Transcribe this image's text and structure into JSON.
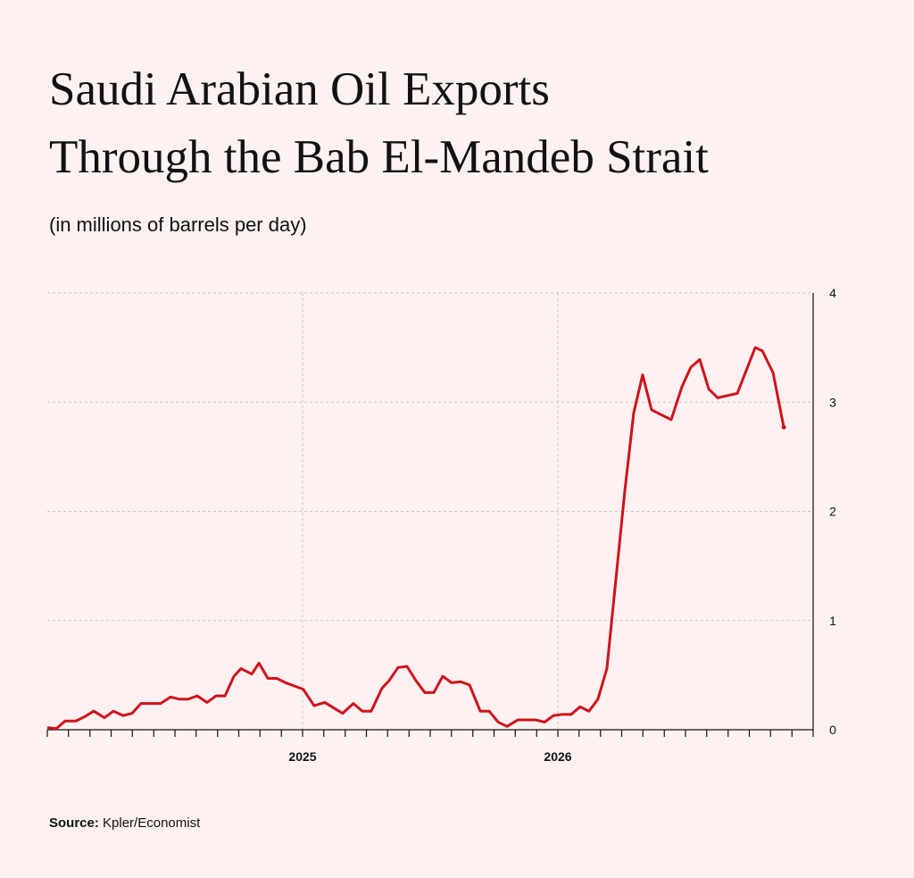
{
  "chart_data": {
    "type": "line",
    "title_lines": [
      "Saudi Arabian Oil Exports",
      "Through the Bab El-Mandeb Strait"
    ],
    "subtitle": "(in millions of barrels per day)",
    "source_label": "Source:",
    "source": "Kpler/Economist",
    "x": [
      2024.0,
      2024.035,
      2024.07,
      2024.112,
      2024.147,
      2024.182,
      2024.224,
      2024.259,
      2024.297,
      2024.332,
      2024.367,
      2024.409,
      2024.444,
      2024.483,
      2024.517,
      2024.552,
      2024.587,
      2024.626,
      2024.661,
      2024.696,
      2024.731,
      2024.759,
      2024.801,
      2024.829,
      2024.864,
      2024.899,
      2024.934,
      2024.969,
      2025.003,
      2025.045,
      2025.087,
      2025.122,
      2025.157,
      2025.199,
      2025.234,
      2025.269,
      2025.311,
      2025.339,
      2025.374,
      2025.409,
      2025.444,
      2025.479,
      2025.514,
      2025.549,
      2025.584,
      2025.619,
      2025.654,
      2025.696,
      2025.731,
      2025.766,
      2025.801,
      2025.843,
      2025.878,
      2025.913,
      2025.948,
      2025.983,
      2026.017,
      2026.052,
      2026.087,
      2026.122,
      2026.157,
      2026.192,
      2026.227,
      2026.262,
      2026.297,
      2026.332,
      2026.367,
      2026.409,
      2026.444,
      2026.486,
      2026.521,
      2026.556,
      2026.591,
      2026.626,
      2026.703,
      2026.773,
      2026.801,
      2026.843,
      2026.885
    ],
    "series": [
      {
        "name": "Exports",
        "color": "#d0121b",
        "values": [
          0.02,
          0.01,
          0.08,
          0.08,
          0.12,
          0.17,
          0.11,
          0.17,
          0.13,
          0.15,
          0.24,
          0.24,
          0.24,
          0.3,
          0.28,
          0.28,
          0.31,
          0.25,
          0.31,
          0.31,
          0.49,
          0.56,
          0.51,
          0.61,
          0.47,
          0.47,
          0.43,
          0.4,
          0.37,
          0.22,
          0.25,
          0.2,
          0.15,
          0.24,
          0.17,
          0.17,
          0.38,
          0.45,
          0.57,
          0.58,
          0.45,
          0.34,
          0.34,
          0.49,
          0.43,
          0.44,
          0.41,
          0.17,
          0.17,
          0.07,
          0.03,
          0.09,
          0.09,
          0.09,
          0.07,
          0.13,
          0.14,
          0.14,
          0.21,
          0.17,
          0.28,
          0.56,
          1.37,
          2.18,
          2.9,
          3.25,
          2.93,
          2.88,
          2.84,
          3.14,
          3.32,
          3.39,
          3.12,
          3.04,
          3.08,
          3.5,
          3.47,
          3.27,
          2.77
        ]
      }
    ],
    "xlim": [
      2024,
      2027
    ],
    "xticks": [
      2025,
      2026
    ],
    "xminorticks": [
      2024,
      2024.083,
      2024.167,
      2024.25,
      2024.333,
      2024.417,
      2024.5,
      2024.583,
      2024.667,
      2024.75,
      2024.833,
      2024.917,
      2025,
      2025.083,
      2025.167,
      2025.25,
      2025.333,
      2025.417,
      2025.5,
      2025.583,
      2025.667,
      2025.75,
      2025.833,
      2025.917,
      2026,
      2026.083,
      2026.167,
      2026.25,
      2026.333,
      2026.417,
      2026.5,
      2026.583,
      2026.667,
      2026.75,
      2026.833,
      2026.917,
      2027
    ],
    "ylim": [
      0,
      4
    ],
    "yticks": [
      0,
      1,
      2,
      3,
      4
    ],
    "grid": true,
    "end_marker": true
  }
}
